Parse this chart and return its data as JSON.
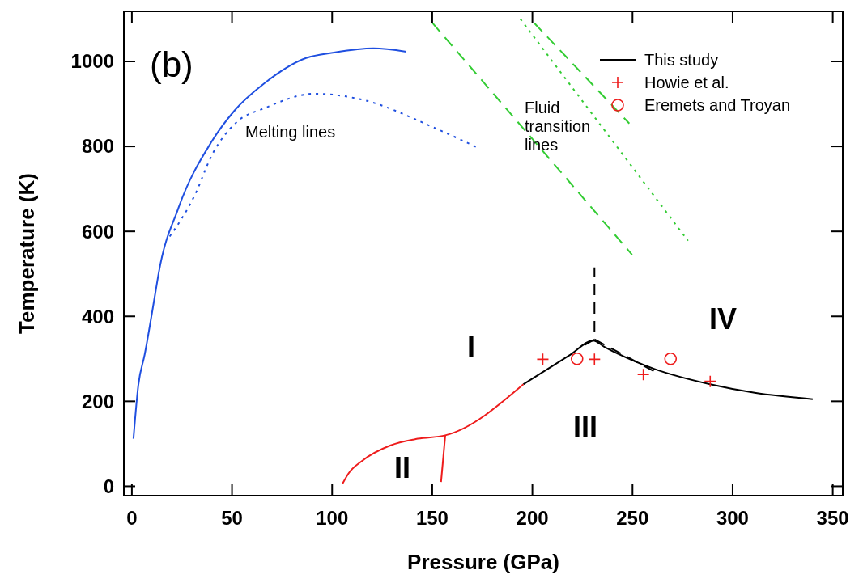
{
  "chart_data": {
    "type": "line",
    "xlabel": "Pressure (GPa)",
    "ylabel": "Temperature (K)",
    "xlim": [
      -4,
      355
    ],
    "ylim": [
      -22,
      1118
    ],
    "xticks": [
      0,
      50,
      100,
      150,
      200,
      250,
      300,
      350
    ],
    "yticks": [
      0,
      200,
      400,
      600,
      800,
      1000
    ],
    "grid": false,
    "legend": "top right",
    "series": [
      {
        "name": "This study",
        "color": "#000000",
        "line_style": "solid",
        "x": [
          195.5,
          219,
          230.3,
          236,
          261,
          288.8,
          311,
          340
        ],
        "values": [
          240,
          310,
          343,
          328,
          276,
          240,
          220,
          205
        ]
      },
      {
        "color": "#000000",
        "line_style": "dashed",
        "x": [
          226,
          231,
          231
        ],
        "values": [
          332,
          346,
          515
        ]
      },
      {
        "color": "#000000",
        "line_style": "dashed",
        "x": [
          231,
          261
        ],
        "values": [
          346,
          270
        ]
      },
      {
        "color": "#ee1c1c",
        "line_style": "solid",
        "x": [
          105.2,
          108,
          115,
          129,
          142.8,
          156.5,
          195.5
        ],
        "values": [
          6,
          29,
          60,
          96,
          112,
          120,
          240
        ]
      },
      {
        "color": "#ee1c1c",
        "line_style": "solid",
        "x": [
          154.4,
          156.5
        ],
        "values": [
          10,
          120
        ]
      },
      {
        "color": "#1f4fe0",
        "line_style": "solid",
        "x": [
          0.8,
          3.2,
          6.4,
          11.9,
          13.4,
          23.1,
          39.8,
          51,
          66.3,
          87,
          101,
          120.6,
          137
        ],
        "values": [
          112,
          237,
          310,
          460,
          502,
          653,
          811,
          883,
          949,
          1008,
          1021,
          1031,
          1023
        ]
      },
      {
        "color": "#1f4fe0",
        "line_style": "dotted",
        "x": [
          18.9,
          31.5,
          39.8,
          52.3,
          66.3,
          91.4,
          115,
          151,
          171.8
        ],
        "values": [
          588,
          686,
          778,
          857,
          890,
          924,
          910,
          844,
          799
        ]
      },
      {
        "color": "#33cc33",
        "line_style": "dashed",
        "x": [
          150.2,
          249.8
        ],
        "values": [
          1090,
          545
        ]
      },
      {
        "color": "#33cc33",
        "line_style": "dashed",
        "x": [
          201,
          248.4
        ],
        "values": [
          1090,
          854
        ]
      },
      {
        "color": "#33cc33",
        "line_style": "dotted",
        "x": [
          194,
          277.7
        ],
        "values": [
          1100,
          578
        ]
      },
      {
        "name": "Howie et al.",
        "type": "scatter",
        "marker": "cross",
        "color": "#ee1c1c",
        "x": [
          205.2,
          231,
          255.4,
          288.8
        ],
        "values": [
          299,
          299,
          263,
          247
        ]
      },
      {
        "name": "Eremets and Troyan",
        "type": "scatter",
        "marker": "circle",
        "color": "#ee1c1c",
        "x": [
          222.3,
          269
        ],
        "values": [
          300,
          300
        ]
      }
    ],
    "annotations": [
      "(b)",
      "Melting lines",
      "Fluid transition lines",
      "I",
      "II",
      "III",
      "IV"
    ]
  }
}
